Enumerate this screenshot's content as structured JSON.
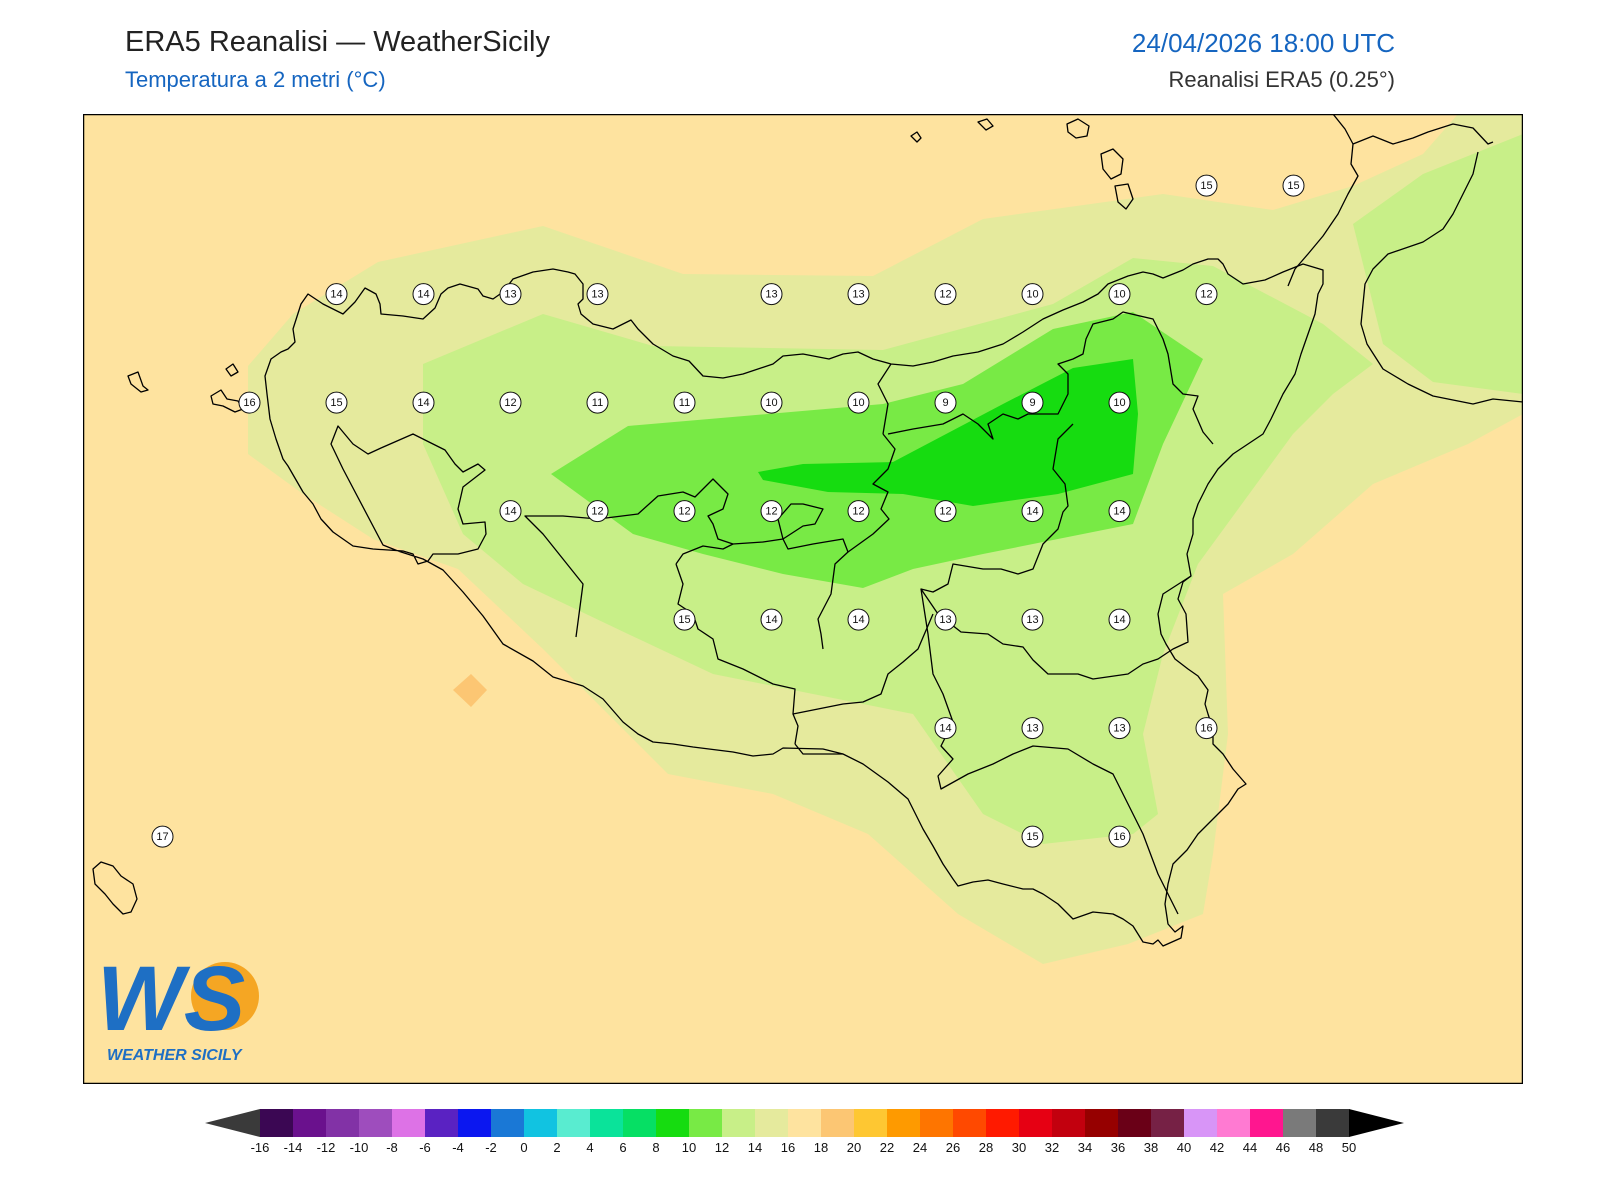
{
  "header": {
    "title": "ERA5 Reanalisi — WeatherSicily",
    "subtitle": "Temperatura a 2 metri (°C)",
    "datetime": "24/04/2026 18:00 UTC",
    "source": "Reanalisi ERA5 (0.25°)"
  },
  "logo": {
    "letters": "WS",
    "name": "WEATHER SICILY"
  },
  "colors": {
    "sea_16_18": "#fee39f",
    "band_14_16": "#e5ea9d",
    "band_12_14": "#c8ef88",
    "band_10_12": "#78ea45",
    "band_8_10": "#16dc10",
    "coastline": "#000000"
  },
  "station_values": [
    {
      "lon": 12.85,
      "lat": 38.12,
      "value": 14
    },
    {
      "lon": 13.35,
      "lat": 38.12,
      "value": 14
    },
    {
      "lon": 13.85,
      "lat": 38.12,
      "value": 13
    },
    {
      "lon": 14.35,
      "lat": 38.12,
      "value": 13
    },
    {
      "lon": 15.35,
      "lat": 38.12,
      "value": 13
    },
    {
      "lon": 15.85,
      "lat": 38.12,
      "value": 13
    },
    {
      "lon": 16.35,
      "lat": 38.12,
      "value": 12
    },
    {
      "lon": 16.85,
      "lat": 38.12,
      "value": 10
    },
    {
      "lon": 17.35,
      "lat": 38.12,
      "value": 10
    },
    {
      "lon": 17.85,
      "lat": 38.12,
      "value": 12
    },
    {
      "lon": 17.85,
      "lat": 38.62,
      "value": 15
    },
    {
      "lon": 18.35,
      "lat": 38.62,
      "value": 15
    },
    {
      "lon": 12.35,
      "lat": 37.62,
      "value": 16
    },
    {
      "lon": 12.85,
      "lat": 37.62,
      "value": 15
    },
    {
      "lon": 13.35,
      "lat": 37.62,
      "value": 14
    },
    {
      "lon": 13.85,
      "lat": 37.62,
      "value": 12
    },
    {
      "lon": 14.35,
      "lat": 37.62,
      "value": 11
    },
    {
      "lon": 14.85,
      "lat": 37.62,
      "value": 11
    },
    {
      "lon": 15.35,
      "lat": 37.62,
      "value": 10
    },
    {
      "lon": 15.85,
      "lat": 37.62,
      "value": 10
    },
    {
      "lon": 16.35,
      "lat": 37.62,
      "value": 9
    },
    {
      "lon": 16.85,
      "lat": 37.62,
      "value": 9
    },
    {
      "lon": 17.35,
      "lat": 37.62,
      "value": 10
    },
    {
      "lon": 13.85,
      "lat": 37.12,
      "value": 14
    },
    {
      "lon": 14.35,
      "lat": 37.12,
      "value": 12
    },
    {
      "lon": 14.85,
      "lat": 37.12,
      "value": 12
    },
    {
      "lon": 15.35,
      "lat": 37.12,
      "value": 12
    },
    {
      "lon": 15.85,
      "lat": 37.12,
      "value": 12
    },
    {
      "lon": 16.35,
      "lat": 37.12,
      "value": 12
    },
    {
      "lon": 16.85,
      "lat": 37.12,
      "value": 14
    },
    {
      "lon": 17.35,
      "lat": 37.12,
      "value": 14
    },
    {
      "lon": 14.85,
      "lat": 36.62,
      "value": 15
    },
    {
      "lon": 15.35,
      "lat": 36.62,
      "value": 14
    },
    {
      "lon": 15.85,
      "lat": 36.62,
      "value": 14
    },
    {
      "lon": 16.35,
      "lat": 36.62,
      "value": 13
    },
    {
      "lon": 16.85,
      "lat": 36.62,
      "value": 13
    },
    {
      "lon": 17.35,
      "lat": 36.62,
      "value": 14
    },
    {
      "lon": 16.35,
      "lat": 36.12,
      "value": 14
    },
    {
      "lon": 16.85,
      "lat": 36.12,
      "value": 13
    },
    {
      "lon": 17.35,
      "lat": 36.12,
      "value": 13
    },
    {
      "lon": 17.85,
      "lat": 36.12,
      "value": 16
    },
    {
      "lon": 16.85,
      "lat": 35.62,
      "value": 15
    },
    {
      "lon": 17.35,
      "lat": 35.62,
      "value": 16
    },
    {
      "lon": 11.85,
      "lat": 35.62,
      "value": 17
    }
  ],
  "colorbar": {
    "ticks": [
      "-16",
      "-14",
      "-12",
      "-10",
      "-8",
      "-6",
      "-4",
      "-2",
      "0",
      "2",
      "4",
      "6",
      "8",
      "10",
      "12",
      "14",
      "16",
      "18",
      "20",
      "22",
      "24",
      "26",
      "28",
      "30",
      "32",
      "34",
      "36",
      "38",
      "40",
      "42",
      "44",
      "46",
      "48",
      "50"
    ],
    "colors": [
      "#3b0753",
      "#6a118d",
      "#8232a6",
      "#9e4dbd",
      "#dd72e6",
      "#5a22c2",
      "#0b17f0",
      "#1a78d6",
      "#11c3e1",
      "#59ecd0",
      "#0ae39a",
      "#06df64",
      "#16dc10",
      "#78ea45",
      "#c8ef88",
      "#e5ea9d",
      "#fee39f",
      "#fcc673",
      "#fec732",
      "#fe9a00",
      "#fe7500",
      "#ff4900",
      "#ff1a00",
      "#e60013",
      "#c2000e",
      "#960000",
      "#6a0017",
      "#762145",
      "#d895f7",
      "#ff7ad2",
      "#ff168f",
      "#7a7a7a",
      "#3a3a3a"
    ],
    "under_color": "#3a3a3a",
    "over_color": "#000000"
  }
}
